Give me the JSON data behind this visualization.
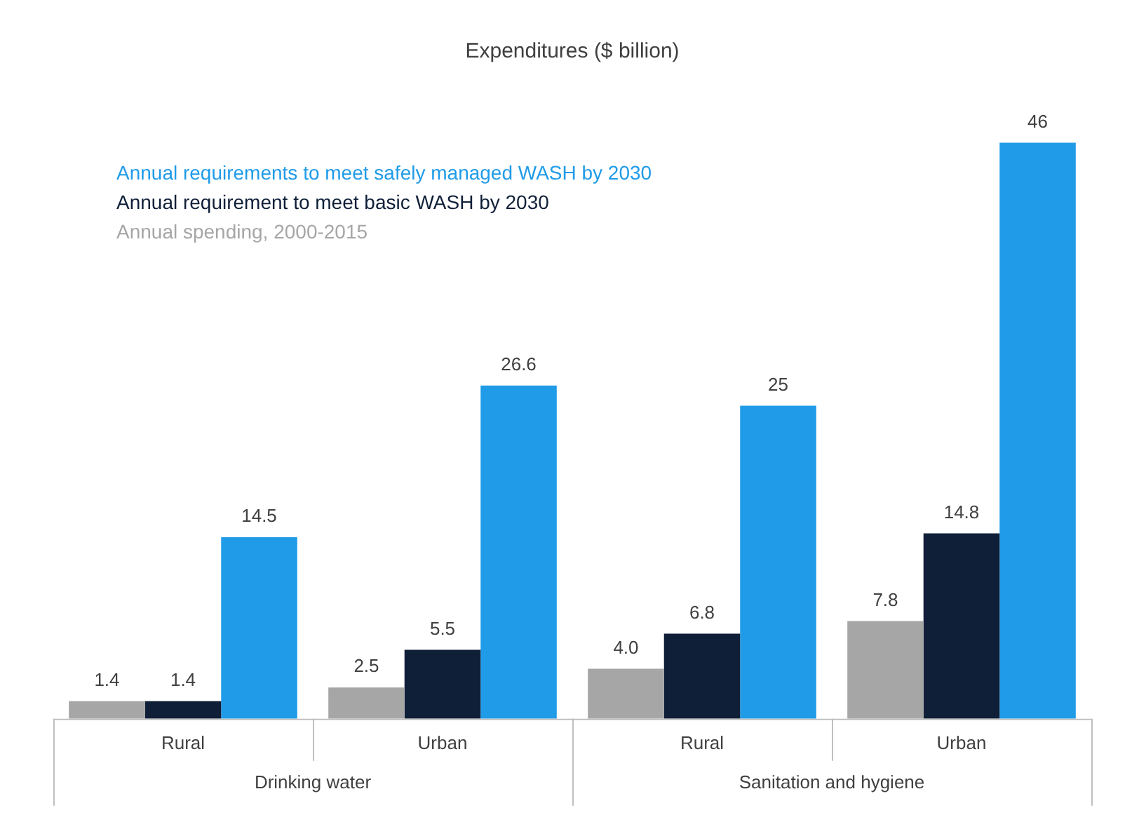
{
  "chart_data": {
    "type": "bar",
    "title": "Expenditures ($ billion)",
    "categories": [
      "Rural",
      "Urban",
      "Rural",
      "Urban"
    ],
    "series": [
      {
        "name": "Annual spending, 2000-2015",
        "color": "#a6a6a6",
        "values": [
          1.4,
          2.5,
          4.0,
          7.8
        ],
        "value_labels": [
          "1.4",
          "2.5",
          "4.0",
          "7.8"
        ]
      },
      {
        "name": "Annual requirement to meet basic WASH by 2030",
        "color": "#0f1f38",
        "values": [
          1.4,
          5.5,
          6.8,
          14.8
        ],
        "value_labels": [
          "1.4",
          "5.5",
          "6.8",
          "14.8"
        ]
      },
      {
        "name": "Annual requirements to meet safely managed WASH by 2030",
        "color": "#1f9be8",
        "values": [
          14.5,
          26.6,
          25,
          46
        ],
        "value_labels": [
          "14.5",
          "26.6",
          "25",
          "46"
        ]
      }
    ],
    "annotations": [
      "Drinking water",
      "Sanitation and hygiene"
    ],
    "legend": "top left",
    "grid": false
  }
}
